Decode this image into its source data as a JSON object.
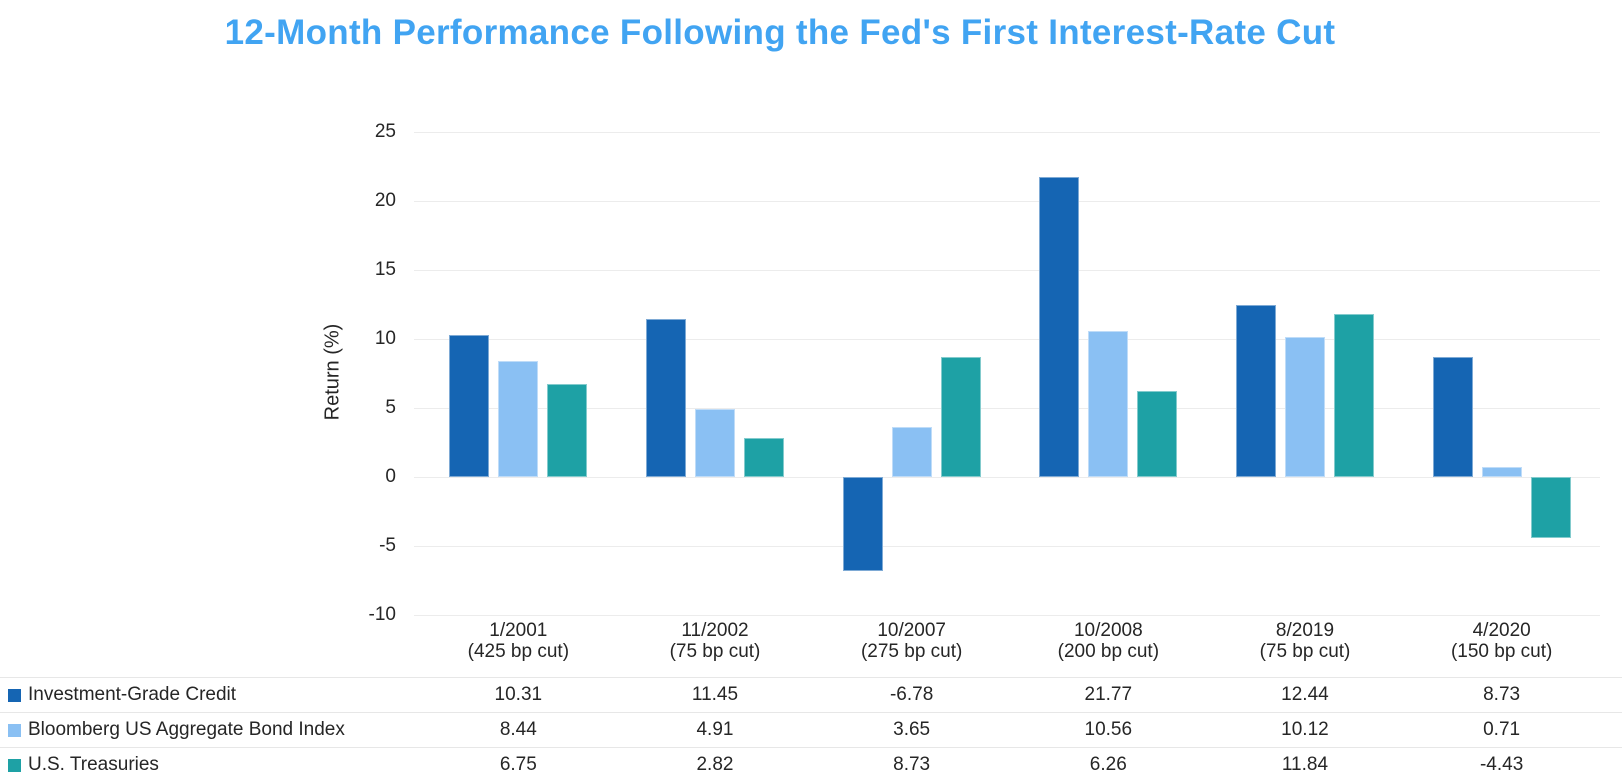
{
  "title": {
    "text": "12-Month Performance Following the Fed's First Interest-Rate Cut",
    "color": "#41a4f2"
  },
  "chart_data": {
    "type": "bar",
    "title": "12-Month Performance Following the Fed's First Interest-Rate Cut",
    "xlabel": "",
    "ylabel": "Return (%)",
    "ylim": [
      -10,
      25
    ],
    "yticks": [
      25,
      20,
      15,
      10,
      5,
      0,
      -5,
      -10
    ],
    "grid": true,
    "legend_position": "table-rows-bottom-left",
    "categories": [
      {
        "date": "1/2001",
        "cut": "(425 bp cut)"
      },
      {
        "date": "11/2002",
        "cut": "(75 bp cut)"
      },
      {
        "date": "10/2007",
        "cut": "(275 bp cut)"
      },
      {
        "date": "10/2008",
        "cut": "(200 bp cut)"
      },
      {
        "date": "8/2019",
        "cut": "(75 bp cut)"
      },
      {
        "date": "4/2020",
        "cut": "(150 bp cut)"
      }
    ],
    "series": [
      {
        "name": "Investment-Grade Credit",
        "color": "#1565b3",
        "values": [
          10.31,
          11.45,
          -6.78,
          21.77,
          12.44,
          8.73
        ]
      },
      {
        "name": "Bloomberg US Aggregate Bond Index",
        "color": "#8ac0f3",
        "values": [
          8.44,
          4.91,
          3.65,
          10.56,
          10.12,
          0.71
        ]
      },
      {
        "name": "U.S. Treasuries",
        "color": "#1ea1a5",
        "values": [
          6.75,
          2.82,
          8.73,
          6.26,
          11.84,
          -4.43
        ]
      }
    ]
  },
  "colors": {
    "grid": "#ececec",
    "row_separator": "#e7e7e7",
    "text": "#262626"
  }
}
